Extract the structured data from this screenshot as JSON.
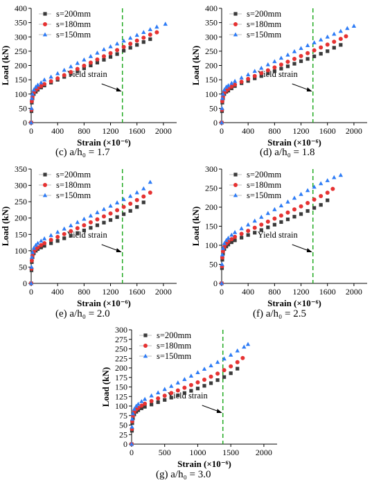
{
  "figure": {
    "legend_labels": [
      "s=200mm",
      "s=180mm",
      "s=150mm"
    ],
    "series_colors": [
      "#3a3a3a",
      "#e63232",
      "#2e7cf6"
    ],
    "series_markers": [
      "square",
      "circle",
      "triangle"
    ],
    "yield_color": "#22aa22",
    "yield_label": "Yield strain"
  },
  "chart_data": [
    {
      "id": "c",
      "type": "scatter",
      "caption": "(c) a/h₀ = 1.7",
      "xlabel": "Strain (×10⁻⁶)",
      "ylabel": "Load (kN)",
      "xlim": [
        0,
        2200
      ],
      "ylim": [
        0,
        400
      ],
      "xticks": [
        0,
        400,
        800,
        1200,
        1600,
        2000
      ],
      "yticks": [
        0,
        50,
        100,
        150,
        200,
        250,
        300,
        350,
        400
      ],
      "yield_strain": 1380,
      "grid": false,
      "legend_position": "top-left",
      "series": [
        {
          "name": "s=200mm",
          "x": [
            0,
            5,
            10,
            20,
            40,
            70,
            100,
            150,
            200,
            300,
            400,
            500,
            600,
            700,
            800,
            900,
            1000,
            1100,
            1200,
            1300,
            1400,
            1500,
            1600,
            1700,
            1800
          ],
          "y": [
            0,
            40,
            70,
            85,
            100,
            108,
            115,
            123,
            130,
            140,
            150,
            160,
            170,
            180,
            190,
            200,
            210,
            220,
            230,
            240,
            252,
            262,
            272,
            282,
            292
          ]
        },
        {
          "name": "s=180mm",
          "x": [
            0,
            5,
            10,
            20,
            40,
            70,
            100,
            150,
            200,
            300,
            400,
            500,
            600,
            700,
            800,
            900,
            1000,
            1100,
            1200,
            1300,
            1400,
            1500,
            1600,
            1700,
            1800,
            1900
          ],
          "y": [
            0,
            45,
            75,
            90,
            105,
            115,
            120,
            128,
            135,
            145,
            155,
            166,
            177,
            188,
            199,
            210,
            221,
            232,
            243,
            254,
            265,
            276,
            287,
            297,
            308,
            316
          ]
        },
        {
          "name": "s=150mm",
          "x": [
            0,
            5,
            10,
            20,
            40,
            70,
            100,
            150,
            200,
            300,
            400,
            500,
            600,
            700,
            800,
            900,
            1000,
            1100,
            1200,
            1300,
            1400,
            1500,
            1600,
            1700,
            1800,
            1900,
            2030
          ],
          "y": [
            0,
            50,
            85,
            100,
            115,
            125,
            132,
            140,
            150,
            160,
            172,
            184,
            196,
            208,
            220,
            232,
            244,
            256,
            266,
            276,
            286,
            296,
            306,
            316,
            326,
            335,
            345
          ]
        }
      ]
    },
    {
      "id": "d",
      "type": "scatter",
      "caption": "(d) a/h₀ = 1.8",
      "xlabel": "Strain (×10⁻⁶)",
      "ylabel": "Load (kN)",
      "xlim": [
        0,
        2200
      ],
      "ylim": [
        0,
        400
      ],
      "xticks": [
        0,
        400,
        800,
        1200,
        1600,
        2000
      ],
      "yticks": [
        0,
        50,
        100,
        150,
        200,
        250,
        300,
        350,
        400
      ],
      "yield_strain": 1380,
      "grid": false,
      "legend_position": "top-left",
      "series": [
        {
          "name": "s=200mm",
          "x": [
            0,
            5,
            10,
            20,
            40,
            70,
            100,
            150,
            200,
            300,
            400,
            500,
            600,
            700,
            800,
            900,
            1000,
            1100,
            1200,
            1300,
            1400,
            1500,
            1600,
            1700,
            1800
          ],
          "y": [
            0,
            40,
            70,
            85,
            100,
            108,
            112,
            120,
            128,
            138,
            146,
            155,
            163,
            172,
            180,
            189,
            197,
            206,
            215,
            223,
            232,
            241,
            250,
            262,
            272
          ]
        },
        {
          "name": "s=180mm",
          "x": [
            0,
            5,
            10,
            20,
            40,
            70,
            100,
            150,
            200,
            300,
            400,
            500,
            600,
            700,
            800,
            900,
            1000,
            1100,
            1200,
            1300,
            1400,
            1500,
            1600,
            1700,
            1800,
            1880
          ],
          "y": [
            0,
            45,
            75,
            90,
            105,
            112,
            118,
            126,
            133,
            143,
            153,
            163,
            173,
            183,
            193,
            203,
            213,
            223,
            233,
            243,
            253,
            263,
            273,
            283,
            293,
            302
          ]
        },
        {
          "name": "s=150mm",
          "x": [
            0,
            5,
            10,
            20,
            40,
            70,
            100,
            150,
            200,
            300,
            400,
            500,
            600,
            700,
            800,
            900,
            1000,
            1100,
            1200,
            1300,
            1400,
            1500,
            1600,
            1700,
            1800,
            1900,
            2000
          ],
          "y": [
            0,
            50,
            85,
            100,
            115,
            125,
            130,
            138,
            145,
            157,
            168,
            180,
            191,
            203,
            214,
            226,
            237,
            249,
            260,
            270,
            280,
            290,
            300,
            310,
            320,
            330,
            338
          ]
        }
      ]
    },
    {
      "id": "e",
      "type": "scatter",
      "caption": "(e) a/h₀ = 2.0",
      "xlabel": "Strain (×10⁻⁶)",
      "ylabel": "Load (kN)",
      "xlim": [
        0,
        2200
      ],
      "ylim": [
        0,
        350
      ],
      "xticks": [
        0,
        400,
        800,
        1200,
        1600,
        2000
      ],
      "yticks": [
        0,
        50,
        100,
        150,
        200,
        250,
        300,
        350
      ],
      "yield_strain": 1380,
      "grid": false,
      "legend_position": "top-left",
      "series": [
        {
          "name": "s=200mm",
          "x": [
            0,
            5,
            10,
            20,
            40,
            70,
            100,
            150,
            200,
            300,
            400,
            500,
            600,
            700,
            800,
            900,
            1000,
            1100,
            1200,
            1300,
            1400,
            1500,
            1600,
            1700
          ],
          "y": [
            0,
            40,
            65,
            80,
            92,
            100,
            105,
            110,
            115,
            123,
            130,
            138,
            146,
            154,
            162,
            170,
            178,
            186,
            194,
            203,
            212,
            222,
            234,
            248
          ]
        },
        {
          "name": "s=180mm",
          "x": [
            0,
            5,
            10,
            20,
            40,
            70,
            100,
            150,
            200,
            300,
            400,
            500,
            600,
            700,
            800,
            900,
            1000,
            1100,
            1200,
            1300,
            1400,
            1500,
            1600,
            1700,
            1800
          ],
          "y": [
            0,
            45,
            70,
            85,
            97,
            105,
            110,
            117,
            123,
            133,
            142,
            151,
            160,
            169,
            178,
            187,
            196,
            205,
            214,
            224,
            234,
            244,
            255,
            266,
            278
          ]
        },
        {
          "name": "s=150mm",
          "x": [
            0,
            5,
            10,
            20,
            40,
            70,
            100,
            150,
            200,
            300,
            400,
            500,
            600,
            700,
            800,
            900,
            1000,
            1100,
            1200,
            1300,
            1400,
            1500,
            1600,
            1700,
            1800
          ],
          "y": [
            0,
            50,
            80,
            95,
            108,
            117,
            123,
            130,
            137,
            147,
            157,
            167,
            177,
            187,
            197,
            207,
            217,
            227,
            237,
            247,
            257,
            267,
            278,
            290,
            310
          ]
        }
      ]
    },
    {
      "id": "f",
      "type": "scatter",
      "caption": "(f) a/h₀ = 2.5",
      "xlabel": "Strain (×10⁻⁶)",
      "ylabel": "Load (kN)",
      "xlim": [
        0,
        2200
      ],
      "ylim": [
        0,
        300
      ],
      "xticks": [
        0,
        400,
        800,
        1200,
        1600,
        2000
      ],
      "yticks": [
        0,
        50,
        100,
        150,
        200,
        250,
        300
      ],
      "yield_strain": 1380,
      "grid": false,
      "legend_position": "top-left",
      "series": [
        {
          "name": "s=200mm",
          "x": [
            0,
            5,
            10,
            20,
            40,
            70,
            100,
            150,
            200,
            300,
            400,
            500,
            600,
            700,
            800,
            900,
            1000,
            1100,
            1200,
            1300,
            1400,
            1500,
            1600
          ],
          "y": [
            0,
            40,
            62,
            78,
            90,
            97,
            102,
            108,
            113,
            120,
            127,
            133,
            140,
            147,
            154,
            161,
            168,
            175,
            182,
            190,
            198,
            206,
            218
          ]
        },
        {
          "name": "s=180mm",
          "x": [
            0,
            5,
            10,
            20,
            40,
            70,
            100,
            150,
            200,
            300,
            400,
            500,
            600,
            700,
            800,
            900,
            1000,
            1100,
            1200,
            1300,
            1400,
            1500,
            1600,
            1680
          ],
          "y": [
            0,
            45,
            68,
            84,
            96,
            104,
            109,
            116,
            122,
            130,
            138,
            146,
            154,
            162,
            170,
            178,
            186,
            194,
            202,
            211,
            220,
            229,
            238,
            248
          ]
        },
        {
          "name": "s=150mm",
          "x": [
            0,
            5,
            10,
            20,
            40,
            70,
            100,
            150,
            200,
            300,
            400,
            500,
            600,
            700,
            800,
            900,
            1000,
            1100,
            1200,
            1300,
            1400,
            1500,
            1600,
            1700,
            1800
          ],
          "y": [
            0,
            50,
            75,
            92,
            105,
            113,
            119,
            127,
            134,
            144,
            154,
            164,
            174,
            184,
            194,
            204,
            214,
            224,
            234,
            244,
            253,
            262,
            270,
            278,
            284
          ]
        }
      ]
    },
    {
      "id": "g",
      "type": "scatter",
      "caption": "(g) a/h₀ = 3.0",
      "xlabel": "Strain (×10⁻⁶)",
      "ylabel": "Load (kN)",
      "xlim": [
        0,
        2200
      ],
      "ylim": [
        0,
        300
      ],
      "xticks": [
        0,
        500,
        1000,
        1500,
        2000
      ],
      "yticks": [
        0,
        25,
        50,
        75,
        100,
        125,
        150,
        175,
        200,
        225,
        250,
        275,
        300
      ],
      "yield_strain": 1380,
      "grid": false,
      "legend_position": "top-left",
      "series": [
        {
          "name": "s=200mm",
          "x": [
            0,
            5,
            10,
            20,
            40,
            70,
            100,
            150,
            200,
            300,
            400,
            500,
            600,
            700,
            800,
            900,
            1000,
            1100,
            1200,
            1300,
            1400,
            1500,
            1600
          ],
          "y": [
            0,
            35,
            55,
            68,
            78,
            85,
            89,
            94,
            98,
            104,
            110,
            116,
            122,
            128,
            134,
            140,
            146,
            153,
            160,
            168,
            176,
            186,
            198
          ]
        },
        {
          "name": "s=180mm",
          "x": [
            0,
            5,
            10,
            20,
            40,
            70,
            100,
            150,
            200,
            300,
            400,
            500,
            600,
            700,
            800,
            900,
            1000,
            1100,
            1200,
            1300,
            1400,
            1500,
            1600,
            1680
          ],
          "y": [
            0,
            40,
            60,
            74,
            84,
            91,
            95,
            101,
            106,
            113,
            120,
            127,
            134,
            141,
            148,
            155,
            162,
            169,
            177,
            185,
            194,
            204,
            215,
            226
          ]
        },
        {
          "name": "s=150mm",
          "x": [
            0,
            5,
            10,
            20,
            40,
            70,
            100,
            150,
            200,
            300,
            400,
            500,
            600,
            700,
            800,
            900,
            1000,
            1100,
            1200,
            1300,
            1400,
            1500,
            1600,
            1700,
            1760
          ],
          "y": [
            0,
            45,
            66,
            80,
            92,
            100,
            105,
            112,
            118,
            127,
            135,
            144,
            152,
            161,
            170,
            179,
            188,
            197,
            206,
            215,
            224,
            234,
            245,
            255,
            262
          ]
        }
      ]
    }
  ]
}
